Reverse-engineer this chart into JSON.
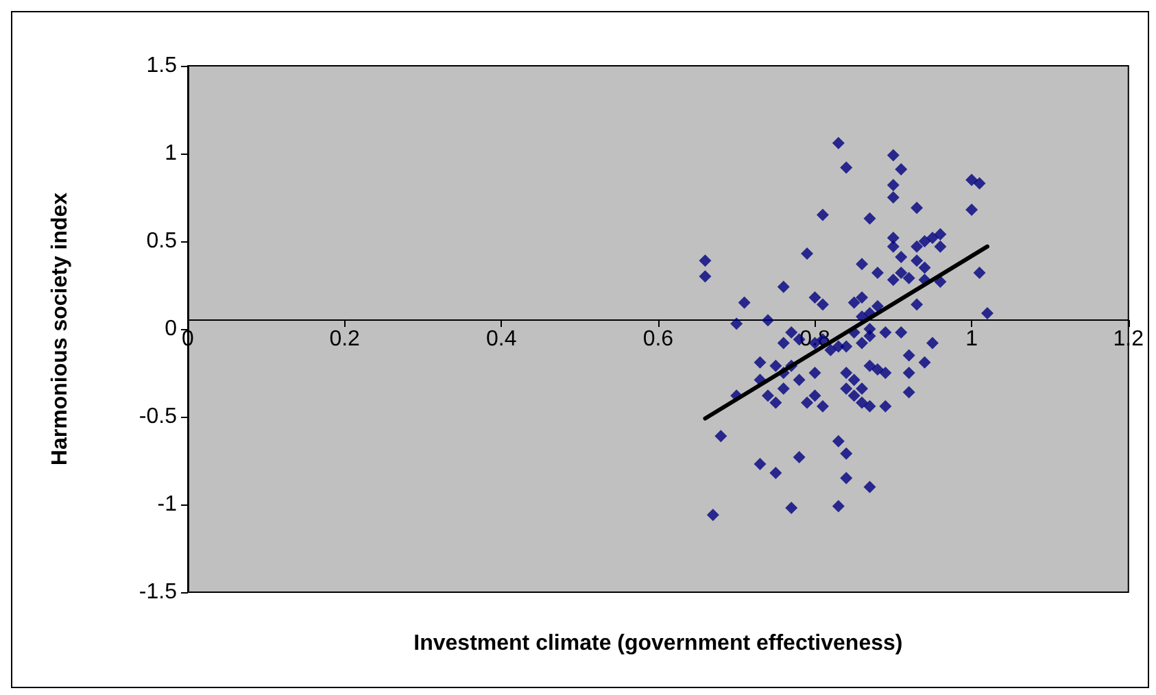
{
  "chart_data": {
    "type": "scatter",
    "xlabel": "Investment climate (government effectiveness)",
    "ylabel": "Harmonious society index",
    "xlim": [
      0,
      1.2
    ],
    "xticks": [
      0,
      0.2,
      0.4,
      0.6,
      0.8,
      1,
      1.2
    ],
    "ylim": [
      -1.5,
      1.5
    ],
    "yticks": [
      -1.5,
      -1,
      -0.5,
      0,
      0.5,
      1,
      1.5
    ],
    "marker": "diamond",
    "series": [
      {
        "type": "scatter",
        "color": "#000080",
        "x": [
          0.66,
          0.66,
          0.83,
          0.84,
          0.9,
          0.91,
          0.9,
          0.9,
          0.93,
          1.0,
          1.01,
          1.0,
          0.81,
          0.87,
          0.79,
          0.86,
          0.88,
          0.9,
          0.9,
          0.93,
          0.94,
          0.95,
          0.96,
          0.96,
          0.91,
          0.93,
          0.91,
          0.9,
          0.92,
          0.94,
          0.94,
          0.96,
          1.01,
          1.02,
          0.93,
          0.95,
          0.94,
          0.92,
          0.92,
          0.92,
          0.91,
          0.89,
          0.88,
          0.87,
          0.86,
          0.85,
          0.86,
          0.85,
          0.86,
          0.87,
          0.87,
          0.84,
          0.83,
          0.81,
          0.8,
          0.76,
          0.74,
          0.71,
          0.7,
          0.7,
          0.68,
          0.67,
          0.73,
          0.73,
          0.74,
          0.75,
          0.75,
          0.76,
          0.76,
          0.77,
          0.76,
          0.78,
          0.77,
          0.78,
          0.79,
          0.8,
          0.81,
          0.8,
          0.8,
          0.81,
          0.82,
          0.84,
          0.84,
          0.85,
          0.85,
          0.86,
          0.86,
          0.87,
          0.88,
          0.89,
          0.89,
          0.87,
          0.73,
          0.75,
          0.78,
          0.77,
          0.83,
          0.84,
          0.84,
          0.87,
          0.83
        ],
        "values": [
          0.39,
          0.3,
          1.06,
          0.92,
          0.99,
          0.91,
          0.82,
          0.75,
          0.69,
          0.85,
          0.83,
          0.68,
          0.65,
          0.63,
          0.43,
          0.37,
          0.32,
          0.52,
          0.47,
          0.47,
          0.5,
          0.52,
          0.54,
          0.47,
          0.41,
          0.39,
          0.32,
          0.28,
          0.29,
          0.35,
          0.28,
          0.27,
          0.32,
          0.09,
          0.14,
          -0.08,
          -0.19,
          -0.15,
          -0.25,
          -0.36,
          -0.02,
          -0.02,
          0.13,
          0.09,
          0.18,
          0.15,
          0.07,
          -0.02,
          -0.08,
          0,
          -0.04,
          -0.1,
          -0.1,
          0.14,
          0.18,
          0.24,
          0.05,
          0.15,
          0.03,
          -0.38,
          -0.61,
          -1.06,
          -0.19,
          -0.29,
          -0.38,
          -0.42,
          -0.21,
          -0.25,
          -0.34,
          -0.02,
          -0.08,
          -0.06,
          -0.21,
          -0.29,
          -0.42,
          -0.08,
          -0.06,
          -0.25,
          -0.38,
          -0.44,
          -0.12,
          -0.25,
          -0.34,
          -0.29,
          -0.38,
          -0.34,
          -0.42,
          -0.44,
          -0.23,
          -0.25,
          -0.44,
          -0.21,
          -0.77,
          -0.82,
          -0.73,
          -1.02,
          -0.64,
          -0.71,
          -0.85,
          -0.9,
          -1.01
        ]
      },
      {
        "type": "line",
        "color": "#000000",
        "marker": "none",
        "line_style": "solid",
        "x": [
          0.66,
          1.02
        ],
        "values": [
          -0.51,
          0.47
        ]
      }
    ]
  }
}
